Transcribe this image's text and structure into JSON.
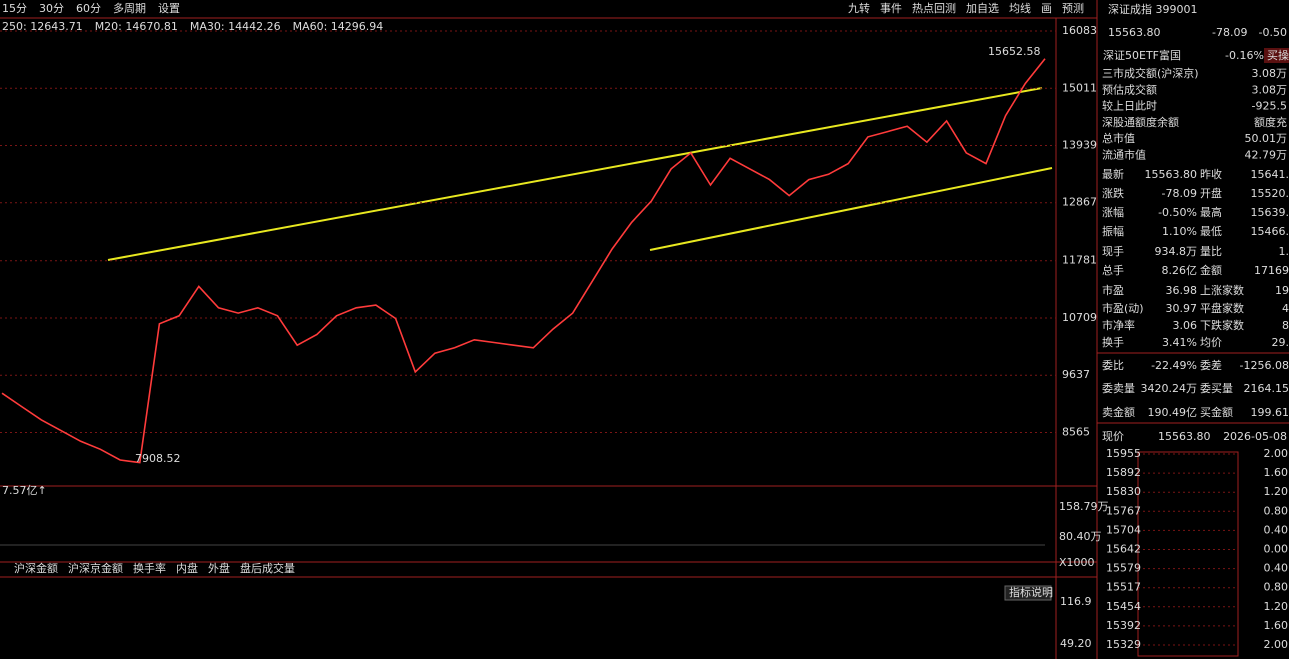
{
  "toolbar": {
    "left": [
      "15分",
      "30分",
      "60分",
      "多周期",
      "设置"
    ],
    "right": [
      "九转",
      "事件",
      "热点回测",
      "加自选",
      "均线",
      "画",
      "预测"
    ]
  },
  "ma_legend": [
    {
      "label": "250: 12643.71",
      "color": "#ffffff"
    },
    {
      "label": "M20: 14670.81",
      "color": "#ffff33"
    },
    {
      "label": "MA30: 14442.26",
      "color": "#ff55ff"
    },
    {
      "label": "MA60: 14296.94",
      "color": "#55ddff"
    }
  ],
  "chart_data": {
    "type": "line",
    "values": [
      9300,
      9050,
      8800,
      8600,
      8400,
      8250,
      8050,
      8000,
      10600,
      10750,
      11300,
      10900,
      10800,
      10900,
      10750,
      10200,
      10400,
      10750,
      10900,
      10950,
      10700,
      9700,
      10050,
      10150,
      10300,
      10250,
      10200,
      10150,
      10500,
      10800,
      11400,
      12000,
      12500,
      12900,
      13500,
      13800,
      13200,
      13700,
      13500,
      13300,
      13000,
      13300,
      13400,
      13600,
      14100,
      14200,
      14300,
      14000,
      14400,
      13800,
      13600,
      14500,
      15100,
      15563.8
    ],
    "color": "#ff3b3b",
    "ylim": [
      7581,
      16252
    ],
    "yticks": [
      8565,
      9637,
      10709,
      11781,
      12867,
      13939,
      15011,
      16083
    ],
    "grid": true,
    "annotations": [
      "15652.58",
      "7908.52"
    ]
  },
  "volume_pane": {
    "header": "7.57亿↑",
    "labels": [
      "158.79万",
      "80.40万",
      "X1000"
    ]
  },
  "tabs": [
    "沪深金额",
    "沪深京金额",
    "换手率",
    "内盘",
    "外盘",
    "盘后成交量"
  ],
  "indicator_pane": {
    "button": "指标说明",
    "labels": [
      "116.9",
      "49.20"
    ]
  },
  "quote": {
    "title": "深证成指 399001",
    "price": "15563.80",
    "change": "-78.09",
    "change_pct": "-0.50",
    "etf": {
      "name": "深证50ETF富国",
      "pct": "-0.16%",
      "action": "买操"
    },
    "info": [
      [
        "三市成交额(沪深京)",
        "3.08万"
      ],
      [
        "预估成交额",
        "3.08万"
      ],
      [
        "较上日此时",
        "-925.5"
      ],
      [
        "深股通额度余额",
        "额度充"
      ],
      [
        "总市值",
        "50.01万"
      ],
      [
        "流通市值",
        "42.79万"
      ]
    ],
    "grid": [
      [
        "最新",
        "15563.80",
        "昨收",
        "15641."
      ],
      [
        "涨跌",
        "-78.09",
        "开盘",
        "15520."
      ],
      [
        "涨幅",
        "-0.50%",
        "最高",
        "15639."
      ],
      [
        "振幅",
        "1.10%",
        "最低",
        "15466."
      ],
      [
        "现手",
        "934.8万",
        "量比",
        "1."
      ],
      [
        "总手",
        "8.26亿",
        "金额",
        "17169"
      ],
      [
        "市盈",
        "36.98",
        "上涨家数",
        "19"
      ],
      [
        "市盈(动)",
        "30.97",
        "平盘家数",
        "4"
      ],
      [
        "市净率",
        "3.06",
        "下跌家数",
        "8"
      ],
      [
        "换手",
        "3.41%",
        "均价",
        "29."
      ],
      [
        "委比",
        "-22.49%",
        "委差",
        "-1256.08"
      ],
      [
        "委卖量",
        "3420.24万",
        "委买量",
        "2164.15"
      ],
      [
        "卖金额",
        "190.49亿",
        "买金额",
        "199.61"
      ]
    ],
    "now": {
      "label": "现价",
      "price": "15563.80",
      "date": "2026-05-08"
    },
    "mini_left": [
      "15955",
      "15892",
      "15830",
      "15767",
      "15704",
      "15642",
      "15579",
      "15517",
      "15454",
      "15392",
      "15329"
    ],
    "mini_right": [
      "2.00",
      "1.60",
      "1.20",
      "0.80",
      "0.40",
      "0.00",
      "0.40",
      "0.80",
      "1.20",
      "1.60",
      "2.00"
    ]
  }
}
